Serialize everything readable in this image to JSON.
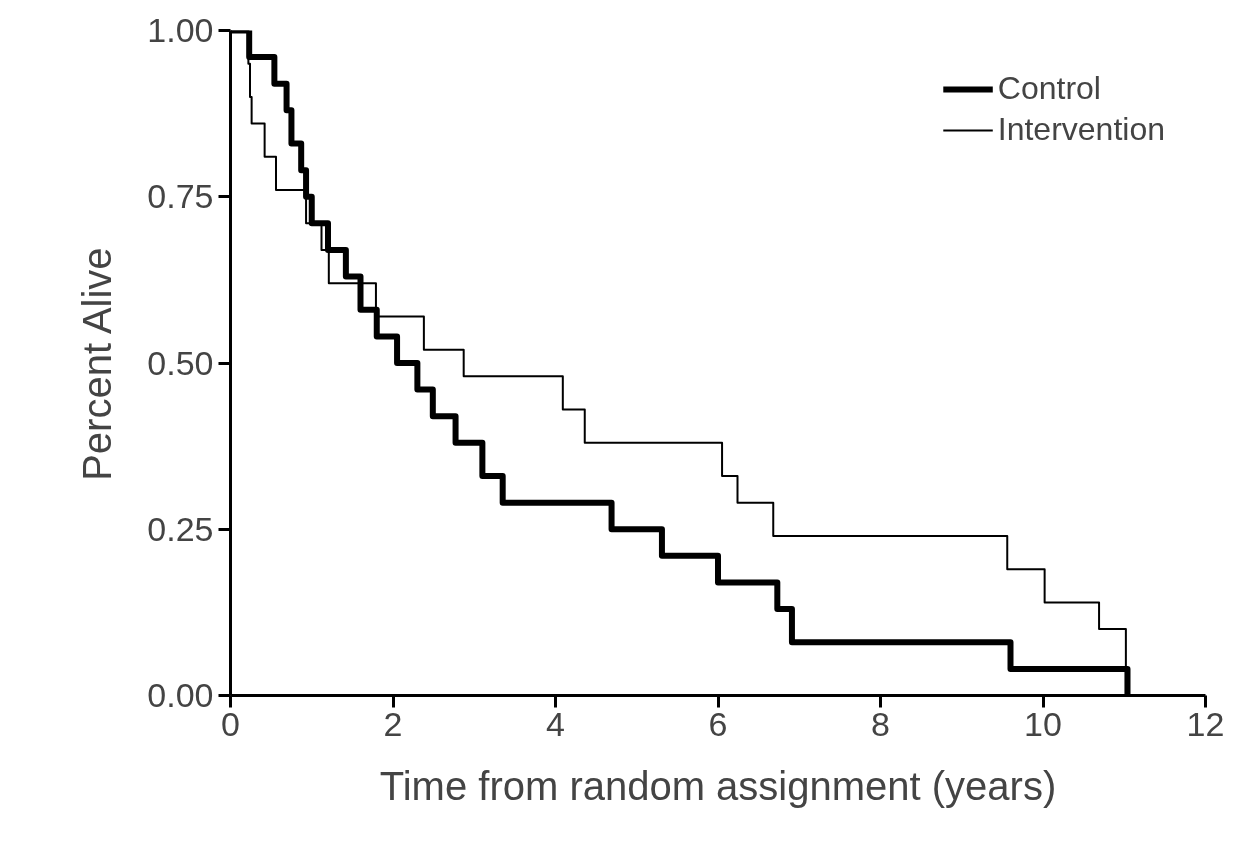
{
  "chart_data": {
    "type": "step",
    "xlabel": "Time from random assignment (years)",
    "ylabel": "Percent Alive",
    "xlim": [
      0,
      12
    ],
    "ylim": [
      0,
      1
    ],
    "xticks": [
      0,
      2,
      4,
      6,
      8,
      10,
      12
    ],
    "yticks": [
      {
        "value": 0,
        "label": "0.00"
      },
      {
        "value": 0.25,
        "label": "0.25"
      },
      {
        "value": 0.5,
        "label": "0.50"
      },
      {
        "value": 0.75,
        "label": "0.75"
      },
      {
        "value": 1,
        "label": "1.00"
      }
    ],
    "grid": false,
    "legend": "top right",
    "series": [
      {
        "name": "Control",
        "color": "#000000",
        "x": [
          0,
          0.23,
          0.54,
          0.69,
          0.75,
          0.87,
          0.93,
          1.0,
          1.2,
          1.42,
          1.6,
          1.8,
          2.05,
          2.3,
          2.49,
          2.77,
          3.1,
          3.35,
          4.69,
          5.31,
          6.0,
          6.73,
          6.91,
          9.6,
          11.04
        ],
        "values": [
          1.0,
          0.96,
          0.92,
          0.88,
          0.83,
          0.79,
          0.75,
          0.71,
          0.67,
          0.63,
          0.58,
          0.54,
          0.5,
          0.46,
          0.42,
          0.38,
          0.33,
          0.29,
          0.25,
          0.21,
          0.17,
          0.13,
          0.08,
          0.04,
          0.0
        ]
      },
      {
        "name": "Intervention",
        "color": "#000000",
        "x": [
          0,
          0.22,
          0.24,
          0.26,
          0.42,
          0.56,
          0.93,
          1.12,
          1.21,
          1.79,
          2.38,
          2.87,
          4.09,
          4.36,
          6.05,
          6.24,
          6.68,
          9.56,
          10.02,
          10.69,
          11.02
        ],
        "values": [
          1.0,
          0.95,
          0.9,
          0.86,
          0.81,
          0.76,
          0.71,
          0.67,
          0.62,
          0.57,
          0.52,
          0.48,
          0.43,
          0.38,
          0.33,
          0.29,
          0.24,
          0.19,
          0.14,
          0.1,
          0.0
        ]
      }
    ]
  }
}
